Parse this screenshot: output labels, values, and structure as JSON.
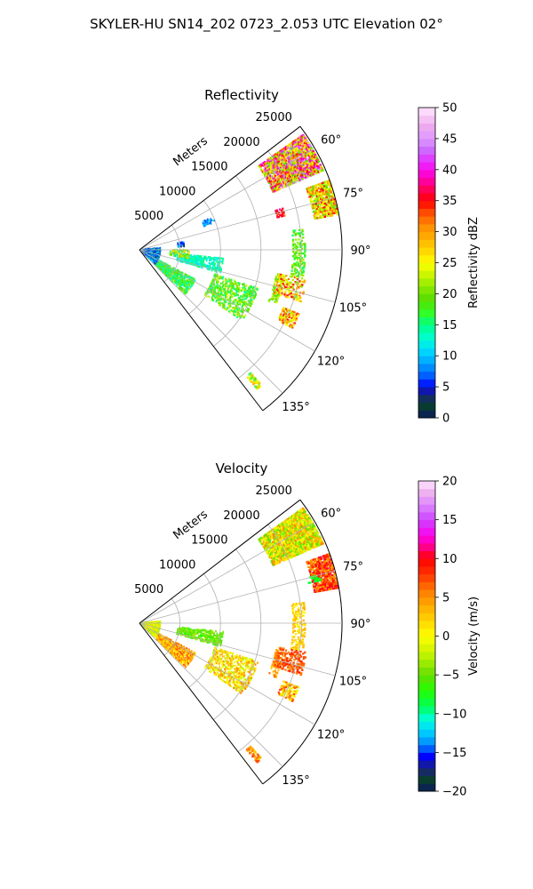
{
  "suptitle": "SKYLER-HU  SN14_202  0723_2.053 UTC Elevation 02°",
  "chart_data": [
    {
      "type": "polar-sector-heatmap",
      "title": "Reflectivity",
      "range_label": "Meters",
      "r_max": 25000,
      "r_ticks": [
        5000,
        10000,
        15000,
        20000,
        25000
      ],
      "r_tick_labels": [
        "5000",
        "10000",
        "15000",
        "20000",
        "25000"
      ],
      "theta_range_deg": [
        52.5,
        142.5
      ],
      "theta_ticks_deg": [
        60,
        75,
        90,
        105,
        120,
        135
      ],
      "theta_tick_labels": [
        "60°",
        "75°",
        "90°",
        "105°",
        "120°",
        "135°"
      ],
      "grid": true,
      "colorbar": {
        "label": "Reflectivity dBZ",
        "min": 0,
        "max": 50,
        "ticks": [
          0,
          5,
          10,
          15,
          20,
          25,
          30,
          35,
          40,
          45,
          50
        ],
        "tick_labels": [
          "0",
          "5",
          "10",
          "15",
          "20",
          "25",
          "30",
          "35",
          "40",
          "45",
          "50"
        ],
        "stops": [
          [
            0,
            "#0b1a5e"
          ],
          [
            2,
            "#0a3d2e"
          ],
          [
            4,
            "#1a237e"
          ],
          [
            5,
            "#0000ff"
          ],
          [
            7,
            "#0066ff"
          ],
          [
            9,
            "#00a8ff"
          ],
          [
            11,
            "#00ddff"
          ],
          [
            13,
            "#00ffcc"
          ],
          [
            15,
            "#00ff88"
          ],
          [
            17,
            "#33ff22"
          ],
          [
            19,
            "#55dd00"
          ],
          [
            21,
            "#88e800"
          ],
          [
            23,
            "#c8f500"
          ],
          [
            25,
            "#ffff00"
          ],
          [
            27,
            "#ffd500"
          ],
          [
            29,
            "#ffb000"
          ],
          [
            31,
            "#ff8c00"
          ],
          [
            33,
            "#ff5000"
          ],
          [
            35,
            "#ff0000"
          ],
          [
            37,
            "#ff0060"
          ],
          [
            39,
            "#ff00cc"
          ],
          [
            41,
            "#ee22ff"
          ],
          [
            43,
            "#cc66ff"
          ],
          [
            45,
            "#dd99ff"
          ],
          [
            47,
            "#eeaaee"
          ],
          [
            50,
            "#ffe6ff"
          ]
        ]
      },
      "echoes": [
        {
          "az": [
            55,
            67
          ],
          "r": [
            18000,
            24800
          ],
          "values": [
            18,
            46
          ],
          "density": 0.9
        },
        {
          "az": [
            70,
            80
          ],
          "r": [
            22000,
            24900
          ],
          "values": [
            18,
            36
          ],
          "density": 0.8
        },
        {
          "az": [
            74,
            77
          ],
          "r": [
            17500,
            18500
          ],
          "values": [
            32,
            38
          ],
          "density": 0.6
        },
        {
          "az": [
            83,
            100
          ],
          "r": [
            19000,
            20500
          ],
          "values": [
            15,
            22
          ],
          "density": 0.45
        },
        {
          "az": [
            100,
            112
          ],
          "r": [
            17200,
            18200
          ],
          "values": [
            18,
            24
          ],
          "density": 0.5
        },
        {
          "az": [
            100,
            108
          ],
          "r": [
            17500,
            21000
          ],
          "values": [
            20,
            36
          ],
          "density": 0.45
        },
        {
          "az": [
            112,
            117
          ],
          "r": [
            19200,
            21300
          ],
          "values": [
            22,
            36
          ],
          "density": 0.7
        },
        {
          "az": [
            96,
            106
          ],
          "r": [
            4800,
            10500
          ],
          "values": [
            11,
            16
          ],
          "density": 0.45
        },
        {
          "az": [
            108,
            125
          ],
          "r": [
            9800,
            15500
          ],
          "values": [
            14,
            24
          ],
          "density": 0.45
        },
        {
          "az": [
            118,
            134
          ],
          "r": [
            2800,
            8000
          ],
          "values": [
            12,
            22
          ],
          "density": 0.5
        },
        {
          "az": [
            85,
            132
          ],
          "r": [
            400,
            2600
          ],
          "values": [
            2,
            13
          ],
          "density": 0.6
        },
        {
          "az": [
            80,
            86
          ],
          "r": [
            4800,
            5600
          ],
          "values": [
            3,
            10
          ],
          "density": 0.5
        },
        {
          "az": [
            90,
            100
          ],
          "r": [
            3800,
            6200
          ],
          "values": [
            10,
            30
          ],
          "density": 0.35
        },
        {
          "az": [
            138,
            140
          ],
          "r": [
            20500,
            22500
          ],
          "values": [
            16,
            30
          ],
          "density": 0.7
        },
        {
          "az": [
            66,
            70
          ],
          "r": [
            8500,
            10200
          ],
          "values": [
            6,
            12
          ],
          "density": 0.35
        }
      ]
    },
    {
      "type": "polar-sector-heatmap",
      "title": "Velocity",
      "range_label": "Meters",
      "r_max": 25000,
      "r_ticks": [
        5000,
        10000,
        15000,
        20000,
        25000
      ],
      "r_tick_labels": [
        "5000",
        "10000",
        "15000",
        "20000",
        "25000"
      ],
      "theta_range_deg": [
        52.5,
        142.5
      ],
      "theta_ticks_deg": [
        60,
        75,
        90,
        105,
        120,
        135
      ],
      "theta_tick_labels": [
        "60°",
        "75°",
        "90°",
        "105°",
        "120°",
        "135°"
      ],
      "grid": true,
      "colorbar": {
        "label": "Velocity (m/s)",
        "min": -20,
        "max": 20,
        "ticks": [
          -20,
          -15,
          -10,
          -5,
          0,
          5,
          10,
          15,
          20
        ],
        "tick_labels": [
          "−20",
          "−15",
          "−10",
          "−5",
          "0",
          "5",
          "10",
          "15",
          "20"
        ],
        "stops": [
          [
            -20,
            "#0b1a5e"
          ],
          [
            -18.5,
            "#0a3d2e"
          ],
          [
            -17,
            "#1a237e"
          ],
          [
            -15.5,
            "#0000ff"
          ],
          [
            -14,
            "#0088ff"
          ],
          [
            -12,
            "#00ddff"
          ],
          [
            -10.5,
            "#00ffcc"
          ],
          [
            -9,
            "#00ff55"
          ],
          [
            -7,
            "#22ff00"
          ],
          [
            -5,
            "#66dd00"
          ],
          [
            -3,
            "#aaf000"
          ],
          [
            -1.5,
            "#d9f500"
          ],
          [
            0,
            "#ffff00"
          ],
          [
            2,
            "#ffd500"
          ],
          [
            4,
            "#ffaa00"
          ],
          [
            6,
            "#ff7700"
          ],
          [
            8,
            "#ff3300"
          ],
          [
            10,
            "#ff0000"
          ],
          [
            11.5,
            "#ff0088"
          ],
          [
            13,
            "#ff00ee"
          ],
          [
            15,
            "#cc44ff"
          ],
          [
            17,
            "#dd88ff"
          ],
          [
            18.5,
            "#eeb0ee"
          ],
          [
            20,
            "#ffe6ff"
          ]
        ]
      },
      "echoes": [
        {
          "az": [
            55,
            67
          ],
          "r": [
            18000,
            24800
          ],
          "values": [
            -6,
            6
          ],
          "density": 0.9
        },
        {
          "az": [
            70,
            80
          ],
          "r": [
            22000,
            24900
          ],
          "values": [
            4,
            11
          ],
          "density": 0.8
        },
        {
          "az": [
            75,
            77
          ],
          "r": [
            21500,
            23000
          ],
          "values": [
            -9,
            -7
          ],
          "density": 0.6
        },
        {
          "az": [
            83,
            100
          ],
          "r": [
            19000,
            20500
          ],
          "values": [
            0,
            4
          ],
          "density": 0.45
        },
        {
          "az": [
            100,
            112
          ],
          "r": [
            17200,
            18200
          ],
          "values": [
            2,
            7
          ],
          "density": 0.5
        },
        {
          "az": [
            100,
            108
          ],
          "r": [
            17500,
            21000
          ],
          "values": [
            5,
            9
          ],
          "density": 0.45
        },
        {
          "az": [
            112,
            117
          ],
          "r": [
            19200,
            21300
          ],
          "values": [
            -2,
            8
          ],
          "density": 0.6
        },
        {
          "az": [
            96,
            106
          ],
          "r": [
            4800,
            10500
          ],
          "values": [
            -7,
            -3
          ],
          "density": 0.45
        },
        {
          "az": [
            108,
            125
          ],
          "r": [
            9800,
            15500
          ],
          "values": [
            -3,
            6
          ],
          "density": 0.45
        },
        {
          "az": [
            118,
            134
          ],
          "r": [
            2800,
            8000
          ],
          "values": [
            0,
            8
          ],
          "density": 0.5
        },
        {
          "az": [
            85,
            132
          ],
          "r": [
            400,
            2600
          ],
          "values": [
            -4,
            2
          ],
          "density": 0.5
        },
        {
          "az": [
            138,
            140
          ],
          "r": [
            20500,
            22500
          ],
          "values": [
            2,
            8
          ],
          "density": 0.6
        }
      ]
    }
  ]
}
